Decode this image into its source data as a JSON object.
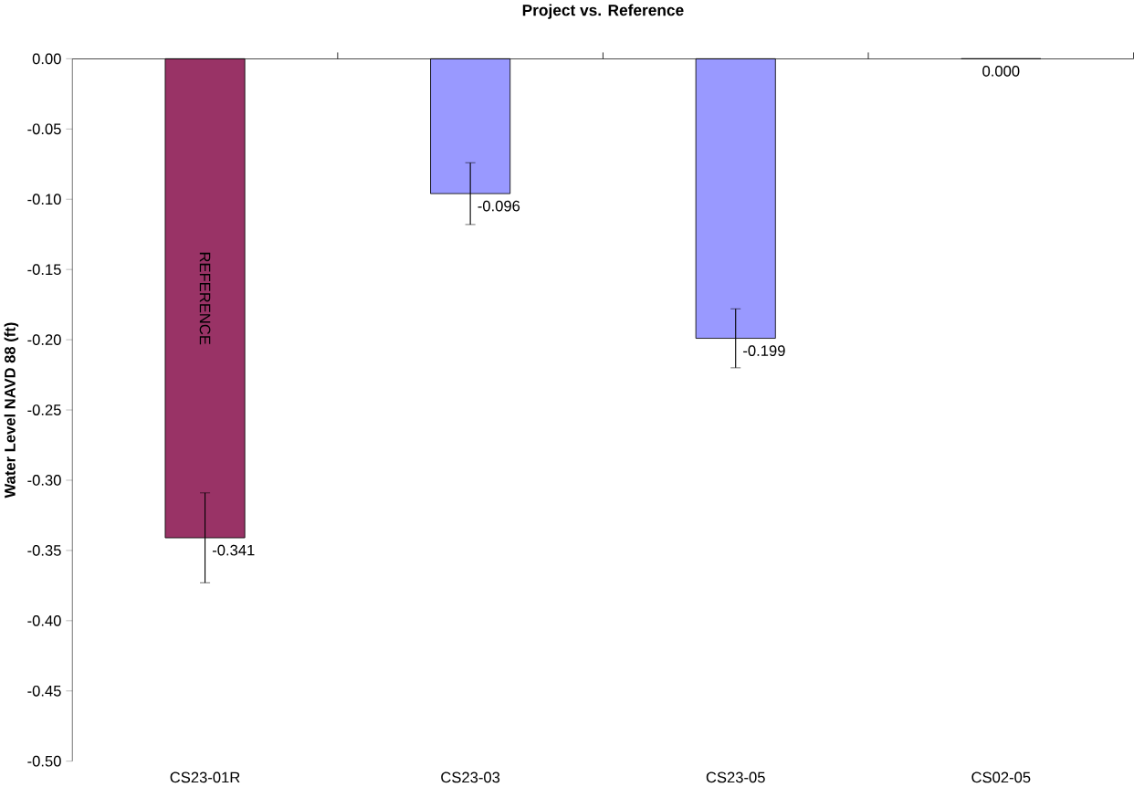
{
  "chart_data": {
    "type": "bar",
    "title": "Project vs. Reference",
    "ylabel": "Water Level NAVD 88 (ft)",
    "categories": [
      "CS23-01R",
      "CS23-03",
      "CS23-05",
      "CS02-05"
    ],
    "values": [
      -0.341,
      -0.096,
      -0.199,
      0.0
    ],
    "errors": [
      0.032,
      0.022,
      0.021,
      null
    ],
    "value_labels": [
      "-0.341",
      "-0.096",
      "-0.199",
      "0.000"
    ],
    "colors": [
      "#993366",
      "#9999ff",
      "#9999ff",
      "#9999ff"
    ],
    "ylim": [
      -0.5,
      0
    ],
    "yticks": [
      {
        "value": 0,
        "label": "0.00"
      },
      {
        "value": -0.05,
        "label": "-0.05"
      },
      {
        "value": -0.1,
        "label": "-0.10"
      },
      {
        "value": -0.15,
        "label": "-0.15"
      },
      {
        "value": -0.2,
        "label": "-0.20"
      },
      {
        "value": -0.25,
        "label": "-0.25"
      },
      {
        "value": -0.3,
        "label": "-0.30"
      },
      {
        "value": -0.35,
        "label": "-0.35"
      },
      {
        "value": -0.4,
        "label": "-0.40"
      },
      {
        "value": -0.45,
        "label": "-0.45"
      },
      {
        "value": -0.5,
        "label": "-0.50"
      }
    ],
    "annotations": [
      "REFERENCE"
    ],
    "grid": false
  }
}
